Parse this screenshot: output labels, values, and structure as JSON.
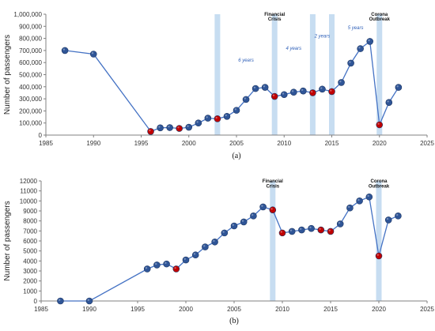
{
  "chart_data": [
    {
      "panel_label": "(a)",
      "type": "line",
      "ylabel": "Number of passengers",
      "xlim": [
        1985,
        2025
      ],
      "ylim": [
        0,
        1000000
      ],
      "x_ticks": [
        1985,
        1990,
        1995,
        2000,
        2005,
        2010,
        2015,
        2020,
        2025
      ],
      "x_tick_labels": [
        "1985",
        "1990",
        "1995",
        "2000",
        "2005",
        "2010",
        "2015",
        "2020",
        "2025"
      ],
      "y_ticks": [
        0,
        100000,
        200000,
        300000,
        400000,
        500000,
        600000,
        700000,
        800000,
        900000,
        1000000
      ],
      "y_tick_labels": [
        "0",
        "100,000",
        "200,000",
        "300,000",
        "400,000",
        "500,000",
        "600,000",
        "700,000",
        "800,000",
        "900,000",
        "1,000,000"
      ],
      "grid": false,
      "x": [
        1987,
        1990,
        1996,
        1997,
        1998,
        1999,
        2000,
        2001,
        2002,
        2003,
        2004,
        2005,
        2006,
        2007,
        2008,
        2009,
        2010,
        2011,
        2012,
        2013,
        2014,
        2015,
        2016,
        2017,
        2018,
        2019,
        2020,
        2021,
        2022
      ],
      "values": [
        700000,
        670000,
        30000,
        60000,
        62000,
        55000,
        65000,
        100000,
        140000,
        135000,
        155000,
        205000,
        295000,
        385000,
        395000,
        320000,
        335000,
        355000,
        365000,
        350000,
        380000,
        360000,
        435000,
        595000,
        715000,
        775000,
        85000,
        270000,
        395000
      ],
      "highlighted_years": [
        1996,
        1999,
        2003,
        2009,
        2013,
        2015,
        2020
      ],
      "marker_colors": {
        "normal": "#2f5597",
        "highlighted": "#c00000",
        "line": "#4472c4",
        "band": "#bdd7ee"
      },
      "bands": [
        2003,
        2009,
        2013,
        2015,
        2020
      ],
      "annotations": [
        {
          "text": "Financial",
          "x": 2009,
          "y": 1000000,
          "style": "bold"
        },
        {
          "text": "Crisis",
          "x": 2009,
          "y": 960000,
          "style": "bold"
        },
        {
          "text": "Corona",
          "x": 2020,
          "y": 1000000,
          "style": "bold"
        },
        {
          "text": "Outbreak",
          "x": 2020,
          "y": 960000,
          "style": "bold"
        },
        {
          "text": "6 years",
          "x": 2006,
          "y": 620000,
          "style": "blue"
        },
        {
          "text": "4 years",
          "x": 2011,
          "y": 720000,
          "style": "blue"
        },
        {
          "text": "2 years",
          "x": 2014,
          "y": 820000,
          "style": "blue"
        },
        {
          "text": "5 years",
          "x": 2017.5,
          "y": 890000,
          "style": "blue"
        }
      ]
    },
    {
      "panel_label": "(b)",
      "type": "line",
      "ylabel": "Number of passengers",
      "xlim": [
        1985,
        2025
      ],
      "ylim": [
        0,
        12000
      ],
      "x_ticks": [
        1985,
        1990,
        1995,
        2000,
        2005,
        2010,
        2015,
        2020,
        2025
      ],
      "x_tick_labels": [
        "1985",
        "1990",
        "1995",
        "2000",
        "2005",
        "2010",
        "2015",
        "2020",
        "2025"
      ],
      "y_ticks": [
        0,
        1000,
        2000,
        3000,
        4000,
        5000,
        6000,
        7000,
        8000,
        9000,
        10000,
        11000,
        12000
      ],
      "y_tick_labels": [
        "0",
        "1000",
        "2000",
        "3000",
        "4000",
        "5000",
        "6000",
        "7000",
        "8000",
        "9000",
        "10000",
        "11000",
        "12000"
      ],
      "grid": false,
      "x": [
        1987,
        1990,
        1996,
        1997,
        1998,
        1999,
        2000,
        2001,
        2002,
        2003,
        2004,
        2005,
        2006,
        2007,
        2008,
        2009,
        2010,
        2011,
        2012,
        2013,
        2014,
        2015,
        2016,
        2017,
        2018,
        2019,
        2020,
        2021,
        2022
      ],
      "values": [
        0,
        0,
        3200,
        3600,
        3700,
        3200,
        4100,
        4600,
        5400,
        5900,
        6800,
        7500,
        7900,
        8500,
        9400,
        9100,
        6800,
        6950,
        7100,
        7250,
        7100,
        6950,
        7700,
        9300,
        10000,
        10400,
        4500,
        8100,
        8500
      ],
      "highlighted_years": [
        1999,
        2009,
        2010,
        2014,
        2015,
        2020
      ],
      "marker_colors": {
        "normal": "#2f5597",
        "highlighted": "#c00000",
        "line": "#4472c4",
        "band": "#bdd7ee"
      },
      "bands": [
        2009,
        2020
      ],
      "annotations": [
        {
          "text": "Financial",
          "x": 2009,
          "y": 12000,
          "style": "bold"
        },
        {
          "text": "Crisis",
          "x": 2009,
          "y": 11500,
          "style": "bold"
        },
        {
          "text": "Corona",
          "x": 2020,
          "y": 12000,
          "style": "bold"
        },
        {
          "text": "Outbreak",
          "x": 2020,
          "y": 11500,
          "style": "bold"
        }
      ]
    }
  ]
}
